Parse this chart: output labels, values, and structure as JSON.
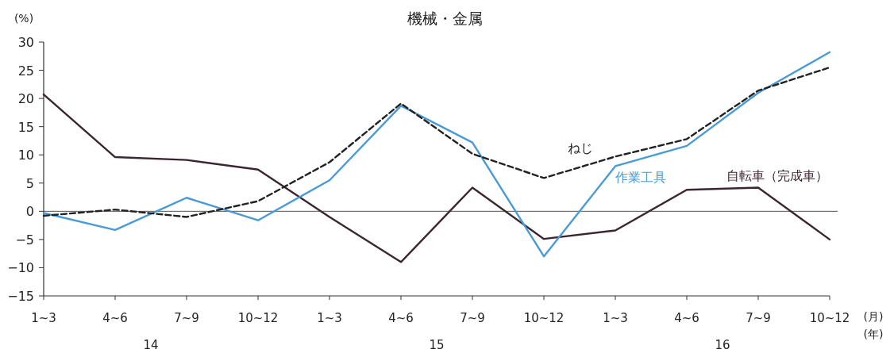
{
  "chart_data": {
    "type": "line",
    "title": "機械・金属",
    "ylabel": "(%)",
    "xlabel": "(月)",
    "categories": [
      "1~3",
      "4~6",
      "7~9",
      "10~12",
      "1~3",
      "4~6",
      "7~9",
      "10~12",
      "1~3",
      "4~6",
      "7~9",
      "10~12"
    ],
    "series": [
      {
        "name": "自転車（完成車）",
        "color": "#3b2530",
        "line_style": "solid",
        "values": [
          20.7,
          9.6,
          9.1,
          7.4,
          -1,
          -9,
          4.2,
          -4.9,
          -3.4,
          3.8,
          4.2,
          -5
        ]
      },
      {
        "name": "作業工具",
        "color": "#4a9ad6",
        "line_style": "solid",
        "values": [
          -0.3,
          -3.3,
          2.4,
          -1.6,
          5.5,
          18.7,
          12.2,
          -8,
          8,
          11.6,
          21,
          28.2
        ]
      },
      {
        "name": "ねじ",
        "color": "#222222",
        "line_style": "dashed",
        "values": [
          -0.8,
          0.3,
          -1,
          1.8,
          8.7,
          19.1,
          10.2,
          5.9,
          9.7,
          12.8,
          21.4,
          25.5
        ]
      }
    ],
    "ylim": [
      -15,
      30
    ],
    "yticks": [
      -15,
      -10,
      -5,
      0,
      5,
      10,
      15,
      20,
      25,
      30
    ],
    "ref_lines": [
      {
        "axis": "y",
        "value": 0,
        "color": "#555555"
      }
    ],
    "annotations": [
      "(年)",
      "14",
      "15",
      "16"
    ],
    "legend": false,
    "marker": "none",
    "grid": false
  }
}
